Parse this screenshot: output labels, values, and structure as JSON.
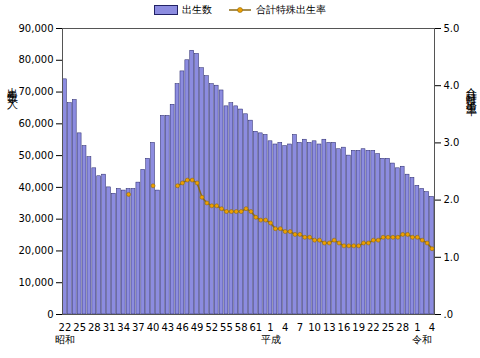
{
  "chart_data": {
    "type": "bar",
    "categories": [
      "22",
      null,
      null,
      "25",
      null,
      null,
      "28",
      null,
      null,
      "31",
      null,
      null,
      "34",
      null,
      null,
      "37",
      null,
      null,
      "40",
      null,
      null,
      "43",
      null,
      null,
      "46",
      null,
      null,
      "49",
      null,
      null,
      "52",
      null,
      null,
      "55",
      null,
      null,
      "58",
      null,
      null,
      "61",
      null,
      null,
      "1",
      null,
      null,
      "4",
      null,
      null,
      "7",
      null,
      null,
      "10",
      null,
      null,
      "13",
      null,
      null,
      "16",
      null,
      null,
      "19",
      null,
      null,
      "22",
      null,
      null,
      "25",
      null,
      null,
      "28",
      null,
      null,
      "1",
      null,
      null,
      "4"
    ],
    "series": [
      {
        "name": "出生数",
        "type": "bar",
        "color": "#8c8ce0",
        "values": [
          74000,
          66500,
          67500,
          57000,
          53000,
          49500,
          46000,
          43500,
          44000,
          40000,
          38000,
          39500,
          39000,
          39500,
          39500,
          41500,
          45500,
          49000,
          54000,
          39000,
          62500,
          62500,
          66000,
          72500,
          76500,
          80000,
          83000,
          82000,
          77500,
          75000,
          72500,
          72000,
          70500,
          65500,
          66500,
          65500,
          64500,
          63000,
          61000,
          57500,
          57000,
          56500,
          54500,
          53500,
          54000,
          53000,
          53500,
          56500,
          54000,
          55000,
          54000,
          54500,
          53500,
          55000,
          54000,
          54000,
          52000,
          52500,
          50000,
          51500,
          51500,
          52000,
          51500,
          51500,
          50500,
          49000,
          49000,
          47500,
          46000,
          46500,
          44000,
          43000,
          40500,
          39500,
          38500,
          37000
        ]
      },
      {
        "name": "合計特殊出生率",
        "type": "line",
        "axis": "y2",
        "color": "#8b6914",
        "marker": "circle",
        "values": [
          null,
          null,
          null,
          null,
          null,
          null,
          null,
          null,
          null,
          null,
          null,
          null,
          null,
          2.1,
          null,
          null,
          null,
          null,
          2.25,
          null,
          null,
          null,
          null,
          2.25,
          2.3,
          2.35,
          2.35,
          2.3,
          2.05,
          1.95,
          1.9,
          1.9,
          1.85,
          1.8,
          1.8,
          1.8,
          1.8,
          1.85,
          1.8,
          1.7,
          1.65,
          1.65,
          1.6,
          1.5,
          1.5,
          1.45,
          1.45,
          1.4,
          1.4,
          1.35,
          1.35,
          1.3,
          1.3,
          1.25,
          1.25,
          1.3,
          1.25,
          1.2,
          1.2,
          1.2,
          1.2,
          1.25,
          1.25,
          1.3,
          1.3,
          1.35,
          1.35,
          1.35,
          1.35,
          1.4,
          1.4,
          1.35,
          1.35,
          1.3,
          1.25,
          1.15
        ]
      }
    ],
    "y_label": "出生数（人）",
    "y2_label": "合計特殊出生率",
    "ylim": [
      0,
      90000
    ],
    "yticks": [
      0,
      {
        "value": 10000,
        "label": "10,000"
      },
      {
        "value": 20000,
        "label": "20,000"
      },
      {
        "value": 30000,
        "label": "30,000"
      },
      {
        "value": 40000,
        "label": "40,000"
      },
      {
        "value": 50000,
        "label": "50,000"
      },
      {
        "value": 60000,
        "label": "60,000"
      },
      {
        "value": 70000,
        "label": "70,000"
      },
      {
        "value": 80000,
        "label": "80,000"
      },
      {
        "value": 90000,
        "label": "90,000"
      }
    ],
    "y2lim": [
      0,
      5
    ],
    "y2ticks": [
      {
        "value": 0,
        "label": ".0"
      },
      {
        "value": 1,
        "label": "1.0"
      },
      {
        "value": 2,
        "label": "2.0"
      },
      {
        "value": 3,
        "label": "3.0"
      },
      {
        "value": 4,
        "label": "4.0"
      },
      {
        "value": 5,
        "label": "5.0"
      }
    ],
    "annotations": [
      {
        "label": "昭和",
        "at": 0
      },
      {
        "label": "平成",
        "at": 42
      },
      {
        "label": "令和",
        "at": 73
      }
    ],
    "legend": "top",
    "grid": false
  }
}
